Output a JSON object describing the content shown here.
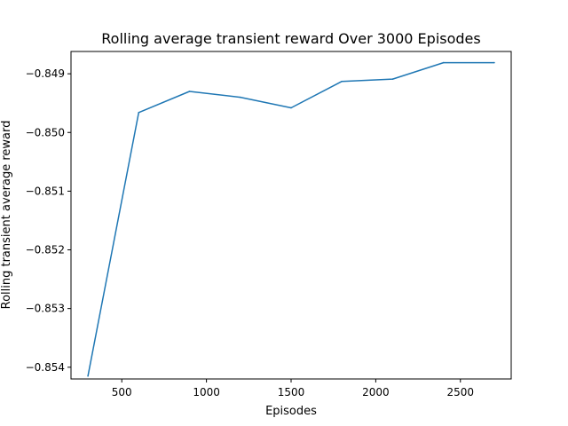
{
  "chart_data": {
    "type": "line",
    "title": "Rolling average transient reward Over 3000 Episodes",
    "xlabel": "Episodes",
    "ylabel": "Rolling transient average reward",
    "xlim": [
      200,
      2800
    ],
    "ylim": [
      -0.8542,
      -0.84862
    ],
    "xticks": [
      500,
      1000,
      1500,
      2000,
      2500
    ],
    "xtick_labels": [
      "500",
      "1000",
      "1500",
      "2000",
      "2500"
    ],
    "yticks": [
      -0.854,
      -0.853,
      -0.852,
      -0.851,
      -0.85,
      -0.849
    ],
    "ytick_labels": [
      "−0.854",
      "−0.853",
      "−0.852",
      "−0.851",
      "−0.850",
      "−0.849"
    ],
    "grid": false,
    "series": [
      {
        "color": "#1f77b4",
        "x": [
          300,
          600,
          900,
          1200,
          1500,
          1800,
          2100,
          2400,
          2700
        ],
        "y": [
          -0.85415,
          -0.84966,
          -0.8493,
          -0.8494,
          -0.84958,
          -0.84913,
          -0.84909,
          -0.84881,
          -0.84881
        ]
      }
    ]
  }
}
